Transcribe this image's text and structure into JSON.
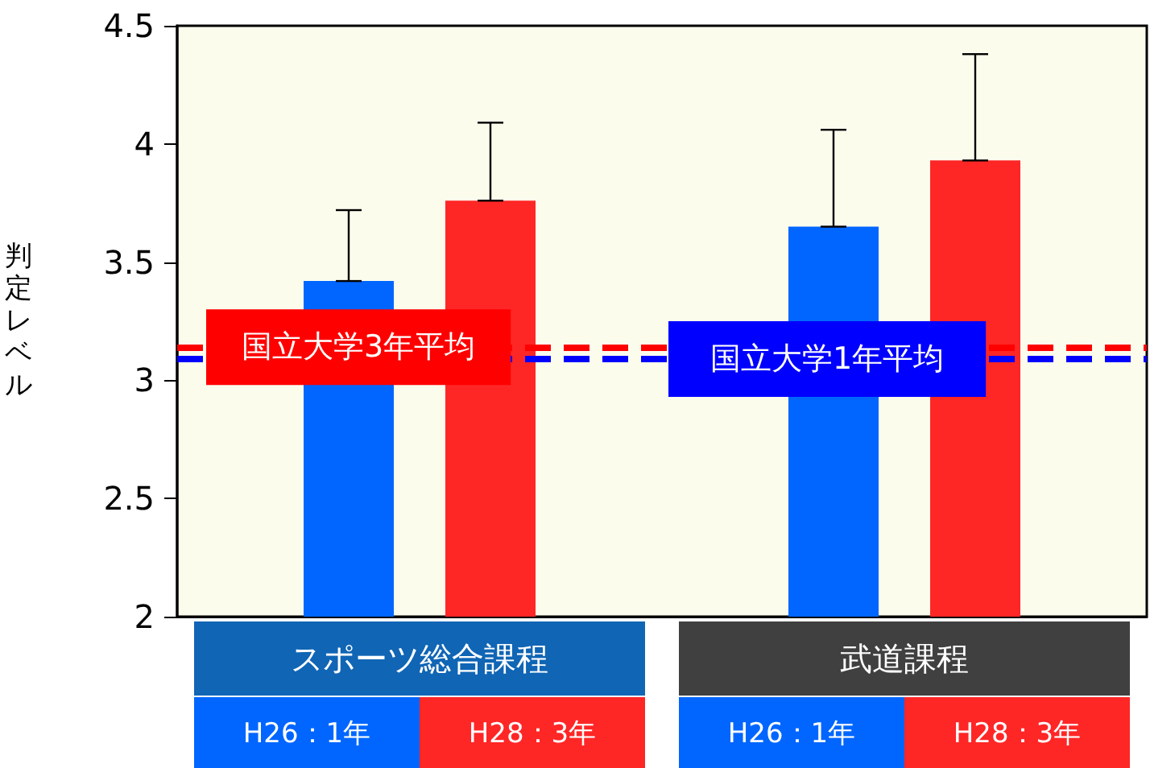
{
  "chart_data": {
    "type": "bar",
    "ylabel": "判定レベル",
    "categories": [
      "スポーツ総合課程",
      "武道課程"
    ],
    "series": [
      {
        "name": "H26：1年",
        "color": "#0066ff",
        "values": [
          3.42,
          3.65
        ],
        "errors": [
          [
            3.42,
            3.72
          ],
          [
            3.65,
            4.06
          ]
        ]
      },
      {
        "name": "H28：3年",
        "color": "#ff2626",
        "values": [
          3.76,
          3.93
        ],
        "errors": [
          [
            3.76,
            4.09
          ],
          [
            3.93,
            4.38
          ]
        ]
      }
    ],
    "ylim": [
      2,
      4.5
    ],
    "yticks": [
      2,
      2.5,
      3,
      3.5,
      4,
      4.5
    ],
    "grid": false,
    "legend": "bottom",
    "ref_lines": [
      {
        "axis": "y",
        "value": 3.14,
        "label": "国立大学3年平均",
        "color": "#ff0000",
        "line_style": "dashed"
      },
      {
        "axis": "y",
        "value": 3.09,
        "label": "国立大学1年平均",
        "color": "#0000ff",
        "line_style": "dashed"
      }
    ]
  }
}
